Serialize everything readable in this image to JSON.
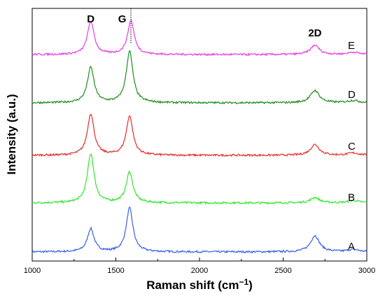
{
  "chart_data": {
    "type": "line",
    "xlabel": "Raman shift (cm",
    "xlabel_sup": "−1",
    "xlabel_close": ")",
    "ylabel": "Intensity (a.u.)",
    "xlim": [
      1000,
      3000
    ],
    "xticks": [
      "1000",
      "1500",
      "2000",
      "2500",
      "3000"
    ],
    "yticks": false,
    "legend": "none",
    "grid": false,
    "peak_labels": [
      {
        "text": "D",
        "x": 1350
      },
      {
        "text": "G",
        "x": 1580
      },
      {
        "text": "2D",
        "x": 2690
      }
    ],
    "reference_line_x": 1590,
    "series": [
      {
        "name": "A",
        "color": "#3a5fe0",
        "peaks": [
          {
            "x": 1350,
            "h": 0.3
          },
          {
            "x": 1582,
            "h": 0.57
          },
          {
            "x": 2690,
            "h": 0.21
          }
        ]
      },
      {
        "name": "B",
        "color": "#2ee62e",
        "peaks": [
          {
            "x": 1350,
            "h": 0.64
          },
          {
            "x": 1582,
            "h": 0.4
          },
          {
            "x": 2690,
            "h": 0.07
          }
        ]
      },
      {
        "name": "C",
        "color": "#e52b2b",
        "peaks": [
          {
            "x": 1350,
            "h": 0.54
          },
          {
            "x": 1582,
            "h": 0.51
          },
          {
            "x": 2690,
            "h": 0.14
          }
        ]
      },
      {
        "name": "D",
        "color": "#1e8c1e",
        "peaks": [
          {
            "x": 1350,
            "h": 0.46
          },
          {
            "x": 1582,
            "h": 0.67
          },
          {
            "x": 2690,
            "h": 0.16
          }
        ]
      },
      {
        "name": "E",
        "color": "#e83ce8",
        "peaks": [
          {
            "x": 1350,
            "h": 0.43
          },
          {
            "x": 1590,
            "h": 0.44
          },
          {
            "x": 2690,
            "h": 0.12
          }
        ]
      }
    ]
  }
}
